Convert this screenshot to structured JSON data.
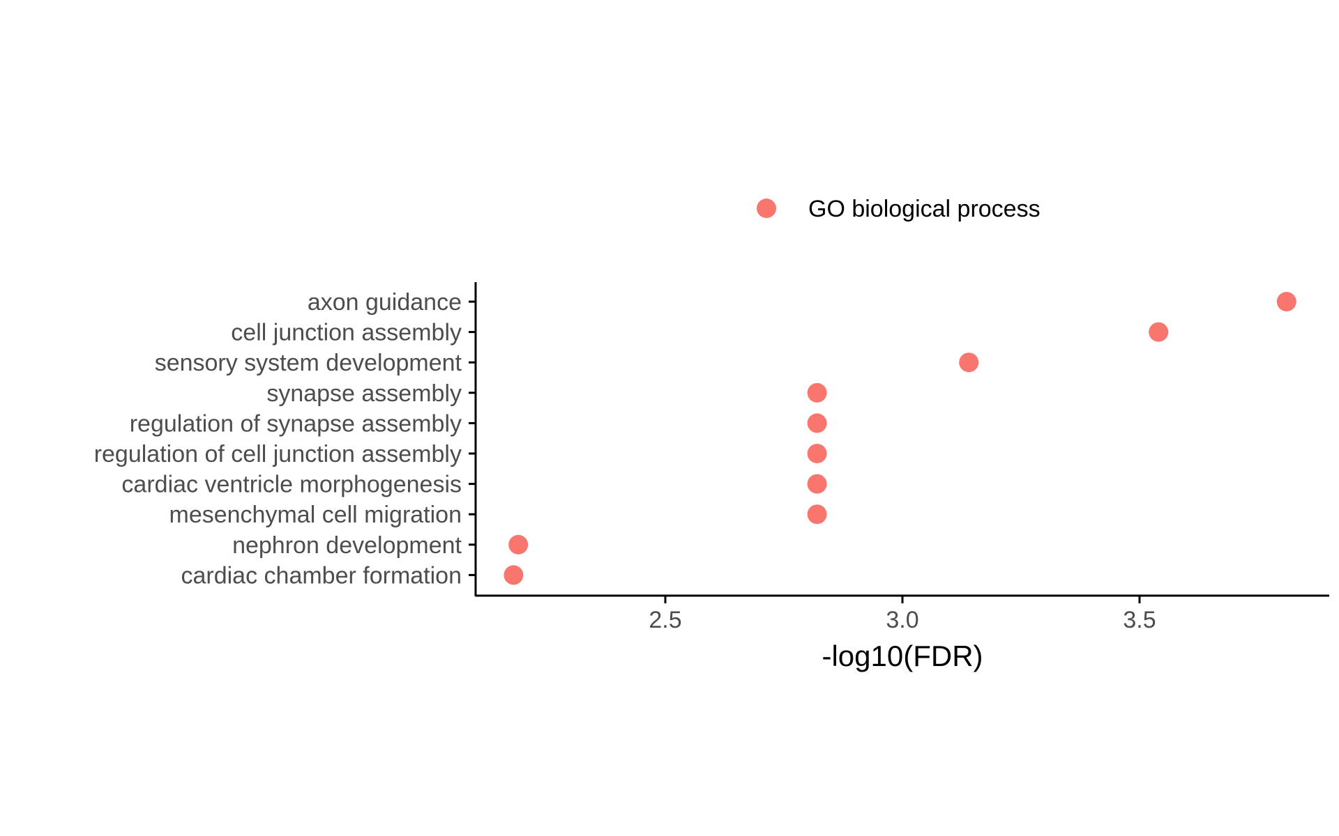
{
  "chart_data": {
    "type": "scatter",
    "xlabel": "-log10(FDR)",
    "ylabel": "",
    "xlim": [
      2.1,
      3.9
    ],
    "xticks": [
      2.5,
      3.0,
      3.5
    ],
    "xtick_labels": [
      "2.5",
      "3.0",
      "3.5"
    ],
    "grid": false,
    "legend_position": "top",
    "categories": [
      "axon guidance",
      "cell junction assembly",
      "sensory system development",
      "synapse assembly",
      "regulation of synapse assembly",
      "regulation of cell junction assembly",
      "cardiac ventricle morphogenesis",
      "mesenchymal cell migration",
      "nephron development",
      "cardiac chamber formation"
    ],
    "series": [
      {
        "name": "GO biological process",
        "color": "#F8766D",
        "values": [
          3.81,
          3.54,
          3.14,
          2.82,
          2.82,
          2.82,
          2.82,
          2.82,
          2.19,
          2.18
        ]
      }
    ]
  }
}
